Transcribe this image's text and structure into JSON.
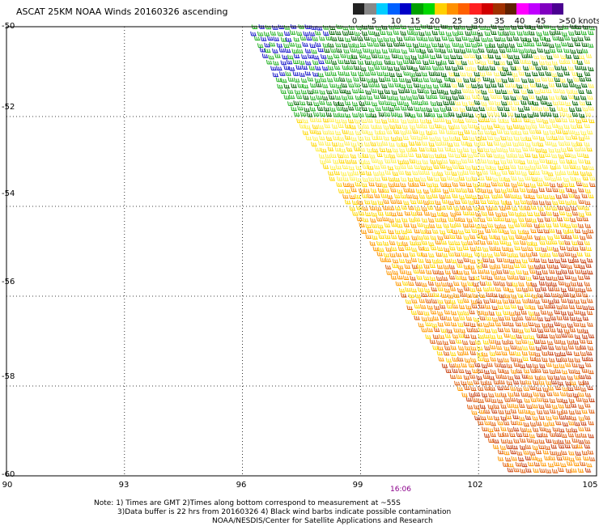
{
  "title": "ASCAT 25KM NOAA Winds 20160326 ascending",
  "legend": {
    "colors": [
      "#222222",
      "#888888",
      "#00cdff",
      "#0060ff",
      "#0000c8",
      "#00a000",
      "#00d800",
      "#ffd000",
      "#ff9000",
      "#ff6000",
      "#ff2020",
      "#d00000",
      "#a03000",
      "#602000",
      "#ff00ff",
      "#c000ff",
      "#8000c0",
      "#4a0090"
    ],
    "labels": [
      "0",
      "5",
      "10",
      "15",
      "20",
      "25",
      "30",
      "35",
      "40",
      "45",
      ">50 knots"
    ]
  },
  "map": {
    "lon_labels": [
      "90",
      "93",
      "96",
      "99",
      "102",
      "105"
    ],
    "lat_labels": [
      "-50",
      "-52",
      "-54",
      "-56",
      "-58",
      "-60"
    ],
    "time_label": "16:06",
    "wind_colors": {
      "blue": "#1414c8",
      "dark_green": "#006400",
      "green": "#20b020",
      "yellow": "#ffd700",
      "light_yellow": "#ffef4a",
      "orange": "#ff9800",
      "dark_orange": "#e06010",
      "red_orange": "#c84010"
    }
  },
  "notes": {
    "line1": "Note: 1) Times are GMT 2)Times along bottom correspond to measurement at ~55S",
    "line2": "3)Data buffer is 22 hrs from 20160326 4) Black wind barbs indicate possible contamination",
    "line3": "NOAA/NESDIS/Center for Satellite Applications and Research"
  }
}
